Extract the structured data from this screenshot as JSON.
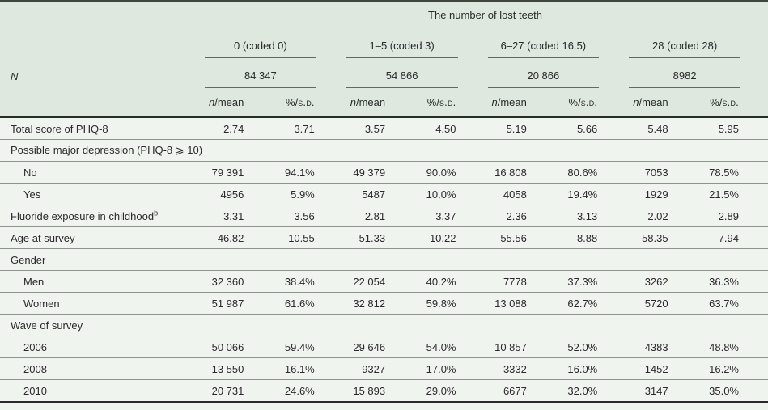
{
  "table": {
    "title": "The number of lost teeth",
    "stub_header": "N",
    "subcol": {
      "n": "n",
      "mean": "/mean",
      "pct": "%/",
      "sd": "s.d."
    },
    "groups": [
      {
        "label": "0 (coded 0)",
        "n": "84 347"
      },
      {
        "label": "1–5 (coded 3)",
        "n": "54 866"
      },
      {
        "label": "6–27 (coded 16.5)",
        "n": "20 866"
      },
      {
        "label": "28 (coded 28)",
        "n": "8982"
      }
    ],
    "rows": [
      {
        "type": "data",
        "label": "Total score of PHQ-8",
        "indent": false,
        "values": [
          "2.74",
          "3.71",
          "3.57",
          "4.50",
          "5.19",
          "5.66",
          "5.48",
          "5.95"
        ]
      },
      {
        "type": "section",
        "label": "Possible major depression (PHQ-8 ⩾ 10)"
      },
      {
        "type": "data",
        "label": "No",
        "indent": true,
        "values": [
          "79 391",
          "94.1%",
          "49 379",
          "90.0%",
          "16 808",
          "80.6%",
          "7053",
          "78.5%"
        ]
      },
      {
        "type": "data",
        "label": "Yes",
        "indent": true,
        "values": [
          "4956",
          "5.9%",
          "5487",
          "10.0%",
          "4058",
          "19.4%",
          "1929",
          "21.5%"
        ]
      },
      {
        "type": "data",
        "label": "Fluoride exposure in childhood",
        "sup": "b",
        "indent": false,
        "values": [
          "3.31",
          "3.56",
          "2.81",
          "3.37",
          "2.36",
          "3.13",
          "2.02",
          "2.89"
        ]
      },
      {
        "type": "data",
        "label": "Age at survey",
        "indent": false,
        "values": [
          "46.82",
          "10.55",
          "51.33",
          "10.22",
          "55.56",
          "8.88",
          "58.35",
          "7.94"
        ]
      },
      {
        "type": "section",
        "label": "Gender"
      },
      {
        "type": "data",
        "label": "Men",
        "indent": true,
        "values": [
          "32 360",
          "38.4%",
          "22 054",
          "40.2%",
          "7778",
          "37.3%",
          "3262",
          "36.3%"
        ]
      },
      {
        "type": "data",
        "label": "Women",
        "indent": true,
        "values": [
          "51 987",
          "61.6%",
          "32 812",
          "59.8%",
          "13 088",
          "62.7%",
          "5720",
          "63.7%"
        ]
      },
      {
        "type": "section",
        "label": "Wave of survey"
      },
      {
        "type": "data",
        "label": "2006",
        "indent": true,
        "values": [
          "50 066",
          "59.4%",
          "29 646",
          "54.0%",
          "10 857",
          "52.0%",
          "4383",
          "48.8%"
        ]
      },
      {
        "type": "data",
        "label": "2008",
        "indent": true,
        "values": [
          "13 550",
          "16.1%",
          "9327",
          "17.0%",
          "3332",
          "16.0%",
          "1452",
          "16.2%"
        ]
      },
      {
        "type": "data",
        "label": "2010",
        "indent": true,
        "values": [
          "20 731",
          "24.6%",
          "15 893",
          "29.0%",
          "6677",
          "32.0%",
          "3147",
          "35.0%"
        ]
      }
    ]
  },
  "colors": {
    "header_bg": "#dee8de",
    "body_bg": "#eff4ee",
    "rule_dark": "#282b28",
    "rule_thin": "#8e948e",
    "text": "#2a2a2a"
  }
}
